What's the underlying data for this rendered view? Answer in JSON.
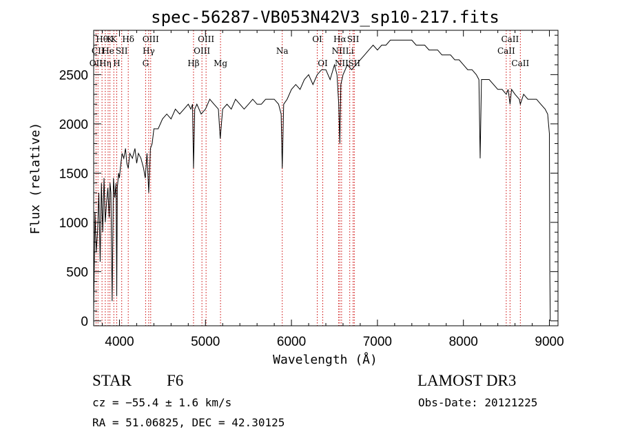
{
  "chart_data": {
    "type": "line",
    "title": "spec-56287-VB053N42V3_sp10-217.fits",
    "xlabel": "Wavelength (Å)",
    "ylabel": "Flux (relative)",
    "xlim": [
      3700,
      9100
    ],
    "ylim": [
      -50,
      2950
    ],
    "x_ticks": [
      4000,
      5000,
      6000,
      7000,
      8000,
      9000
    ],
    "y_ticks": [
      0,
      500,
      1000,
      1500,
      2000,
      2500
    ],
    "grid": false,
    "line_color": "#000000",
    "marker_color": "#cc0000",
    "series": [
      {
        "x": [
          3700,
          3715,
          3730,
          3745,
          3760,
          3775,
          3790,
          3805,
          3820,
          3835,
          3850,
          3865,
          3880,
          3890,
          3900,
          3915,
          3930,
          3945,
          3960,
          3968,
          3975,
          3990,
          4000,
          4010,
          4030,
          4050,
          4070,
          4085,
          4102,
          4120,
          4150,
          4180,
          4200,
          4220,
          4250,
          4280,
          4300,
          4320,
          4340,
          4360,
          4380,
          4400,
          4450,
          4500,
          4550,
          4600,
          4650,
          4700,
          4750,
          4800,
          4830,
          4850,
          4861,
          4875,
          4900,
          4950,
          5000,
          5050,
          5100,
          5150,
          5172,
          5200,
          5250,
          5300,
          5350,
          5400,
          5450,
          5500,
          5550,
          5600,
          5650,
          5700,
          5750,
          5800,
          5850,
          5880,
          5893,
          5910,
          5950,
          6000,
          6050,
          6100,
          6150,
          6200,
          6250,
          6300,
          6350,
          6400,
          6450,
          6500,
          6530,
          6550,
          6563,
          6575,
          6600,
          6650,
          6700,
          6750,
          6800,
          6850,
          6900,
          6950,
          7000,
          7050,
          7100,
          7150,
          7200,
          7250,
          7300,
          7350,
          7400,
          7450,
          7500,
          7550,
          7600,
          7650,
          7700,
          7750,
          7800,
          7850,
          7900,
          7950,
          8000,
          8050,
          8100,
          8150,
          8180,
          8195,
          8210,
          8250,
          8300,
          8350,
          8400,
          8450,
          8498,
          8520,
          8542,
          8560,
          8600,
          8650,
          8662,
          8700,
          8750,
          8800,
          8850,
          8900,
          8950,
          8980,
          9000,
          9005,
          9010
        ],
        "y": [
          100,
          1100,
          700,
          900,
          1300,
          600,
          1400,
          900,
          1450,
          1000,
          1200,
          1350,
          1050,
          1400,
          1300,
          200,
          1450,
          1250,
          1400,
          250,
          1350,
          1500,
          1450,
          1550,
          1700,
          1650,
          1750,
          1600,
          1550,
          1700,
          1650,
          1750,
          1600,
          1700,
          1650,
          1550,
          1450,
          1700,
          1300,
          1750,
          1800,
          1950,
          1950,
          2050,
          2100,
          2050,
          2150,
          2100,
          2150,
          2200,
          2150,
          2200,
          1550,
          2150,
          2200,
          2100,
          2150,
          2250,
          2200,
          2150,
          1850,
          2150,
          2200,
          2150,
          2250,
          2200,
          2150,
          2200,
          2250,
          2200,
          2200,
          2250,
          2250,
          2250,
          2200,
          2100,
          1550,
          2200,
          2250,
          2350,
          2400,
          2350,
          2450,
          2500,
          2400,
          2500,
          2550,
          2550,
          2450,
          2600,
          2500,
          2200,
          1800,
          2400,
          2500,
          2600,
          2550,
          2600,
          2650,
          2700,
          2750,
          2800,
          2750,
          2800,
          2800,
          2850,
          2850,
          2850,
          2850,
          2850,
          2850,
          2800,
          2800,
          2800,
          2750,
          2750,
          2750,
          2700,
          2700,
          2700,
          2650,
          2650,
          2600,
          2550,
          2550,
          2500,
          2450,
          1650,
          2450,
          2450,
          2450,
          2400,
          2350,
          2350,
          2300,
          2350,
          2200,
          2350,
          2300,
          2250,
          2200,
          2300,
          2250,
          2250,
          2250,
          2200,
          2150,
          2100,
          1900,
          500,
          0
        ]
      }
    ],
    "line_markers": [
      {
        "wave": 3727,
        "label": "OII",
        "row": 3
      },
      {
        "wave": 3750,
        "label": "CII",
        "row": 2
      },
      {
        "wave": 3797,
        "label": "Hθ",
        "row": 1
      },
      {
        "wave": 3835,
        "label": "Hη",
        "row": 3
      },
      {
        "wave": 3868,
        "label": "He",
        "row": 2
      },
      {
        "wave": 3889,
        "label": "K",
        "row": 1
      },
      {
        "wave": 3934,
        "label": "K",
        "row": 1
      },
      {
        "wave": 3968,
        "label": "H",
        "row": 3
      },
      {
        "wave": 4026,
        "label": "SII",
        "row": 2
      },
      {
        "wave": 4102,
        "label": "Hδ",
        "row": 1
      },
      {
        "wave": 4304,
        "label": "G",
        "row": 3
      },
      {
        "wave": 4340,
        "label": "Hγ",
        "row": 2
      },
      {
        "wave": 4363,
        "label": "OIII",
        "row": 1
      },
      {
        "wave": 4861,
        "label": "Hβ",
        "row": 3
      },
      {
        "wave": 4959,
        "label": "OIII",
        "row": 2
      },
      {
        "wave": 5007,
        "label": "OIII",
        "row": 1
      },
      {
        "wave": 5175,
        "label": "Mg",
        "row": 3
      },
      {
        "wave": 5893,
        "label": "Na",
        "row": 2
      },
      {
        "wave": 6300,
        "label": "OI",
        "row": 1
      },
      {
        "wave": 6364,
        "label": "OI",
        "row": 3
      },
      {
        "wave": 6548,
        "label": "NII",
        "row": 2
      },
      {
        "wave": 6563,
        "label": "Hα",
        "row": 1
      },
      {
        "wave": 6583,
        "label": "NII",
        "row": 3
      },
      {
        "wave": 6678,
        "label": "Li",
        "row": 2
      },
      {
        "wave": 6717,
        "label": "SII",
        "row": 1
      },
      {
        "wave": 6731,
        "label": "SII",
        "row": 3
      },
      {
        "wave": 8498,
        "label": "CaII",
        "row": 2
      },
      {
        "wave": 8542,
        "label": "CaII",
        "row": 1
      },
      {
        "wave": 8662,
        "label": "CaII",
        "row": 3
      }
    ]
  },
  "footer": {
    "object_class": "STAR",
    "subclass": "F6",
    "cz": "cz = −55.4 ± 1.6 km/s",
    "coords": "RA =  51.06825, DEC =  42.30125",
    "survey": "LAMOST DR3",
    "obs_date": "Obs-Date: 20121225"
  }
}
